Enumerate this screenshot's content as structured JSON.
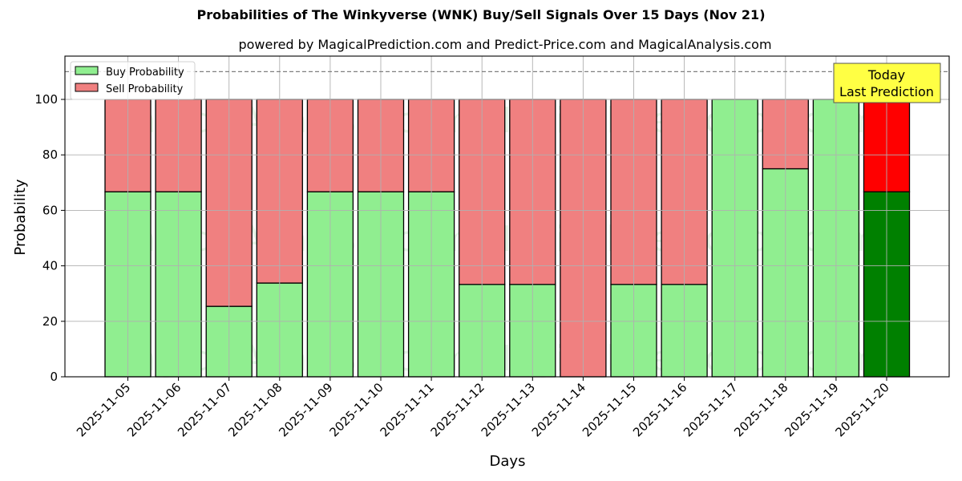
{
  "title": "Probabilities of The Winkyverse (WNK) Buy/Sell Signals Over 15 Days (Nov 21)",
  "subtitle": "powered by MagicalPrediction.com and Predict-Price.com and MagicalAnalysis.com",
  "legend": {
    "buy": "Buy Probability",
    "sell": "Sell Probability"
  },
  "annotation": {
    "line1": "Today",
    "line2": "Last Prediction"
  },
  "watermarks": [
    "MagicalAnalysis.com",
    "MagicalPrediction.com"
  ],
  "colors": {
    "buy": "#90ee90",
    "sell": "#f08080",
    "today_buy": "#008000",
    "today_sell": "#ff0000",
    "annotation_bg": "#ffff44"
  },
  "chart_data": {
    "type": "bar",
    "stacked": true,
    "title": "Probabilities of The Winkyverse (WNK) Buy/Sell Signals Over 15 Days (Nov 21)",
    "subtitle": "powered by MagicalPrediction.com and Predict-Price.com and MagicalAnalysis.com",
    "xlabel": "Days",
    "ylabel": "Probability",
    "ylim": [
      0,
      115
    ],
    "yticks": [
      0,
      20,
      40,
      60,
      80,
      100
    ],
    "grid": true,
    "legend_position": "upper left",
    "reference_line": 110,
    "categories": [
      "2025-11-05",
      "2025-11-06",
      "2025-11-07",
      "2025-11-08",
      "2025-11-09",
      "2025-11-10",
      "2025-11-11",
      "2025-11-12",
      "2025-11-13",
      "2025-11-14",
      "2025-11-15",
      "2025-11-16",
      "2025-11-17",
      "2025-11-18",
      "2025-11-19",
      "2025-11-20"
    ],
    "series": [
      {
        "name": "Buy Probability",
        "values": [
          66.7,
          66.7,
          25.4,
          33.8,
          66.7,
          66.7,
          66.7,
          33.3,
          33.3,
          0,
          33.3,
          33.3,
          100,
          75,
          100,
          66.7
        ]
      },
      {
        "name": "Sell Probability",
        "values": [
          33.3,
          33.3,
          74.6,
          66.2,
          33.3,
          33.3,
          33.3,
          66.7,
          66.7,
          100,
          66.7,
          66.7,
          0,
          25,
          0,
          33.3
        ]
      }
    ],
    "annotations": [
      {
        "text": "Today\nLast Prediction",
        "x": "2025-11-20"
      }
    ]
  }
}
